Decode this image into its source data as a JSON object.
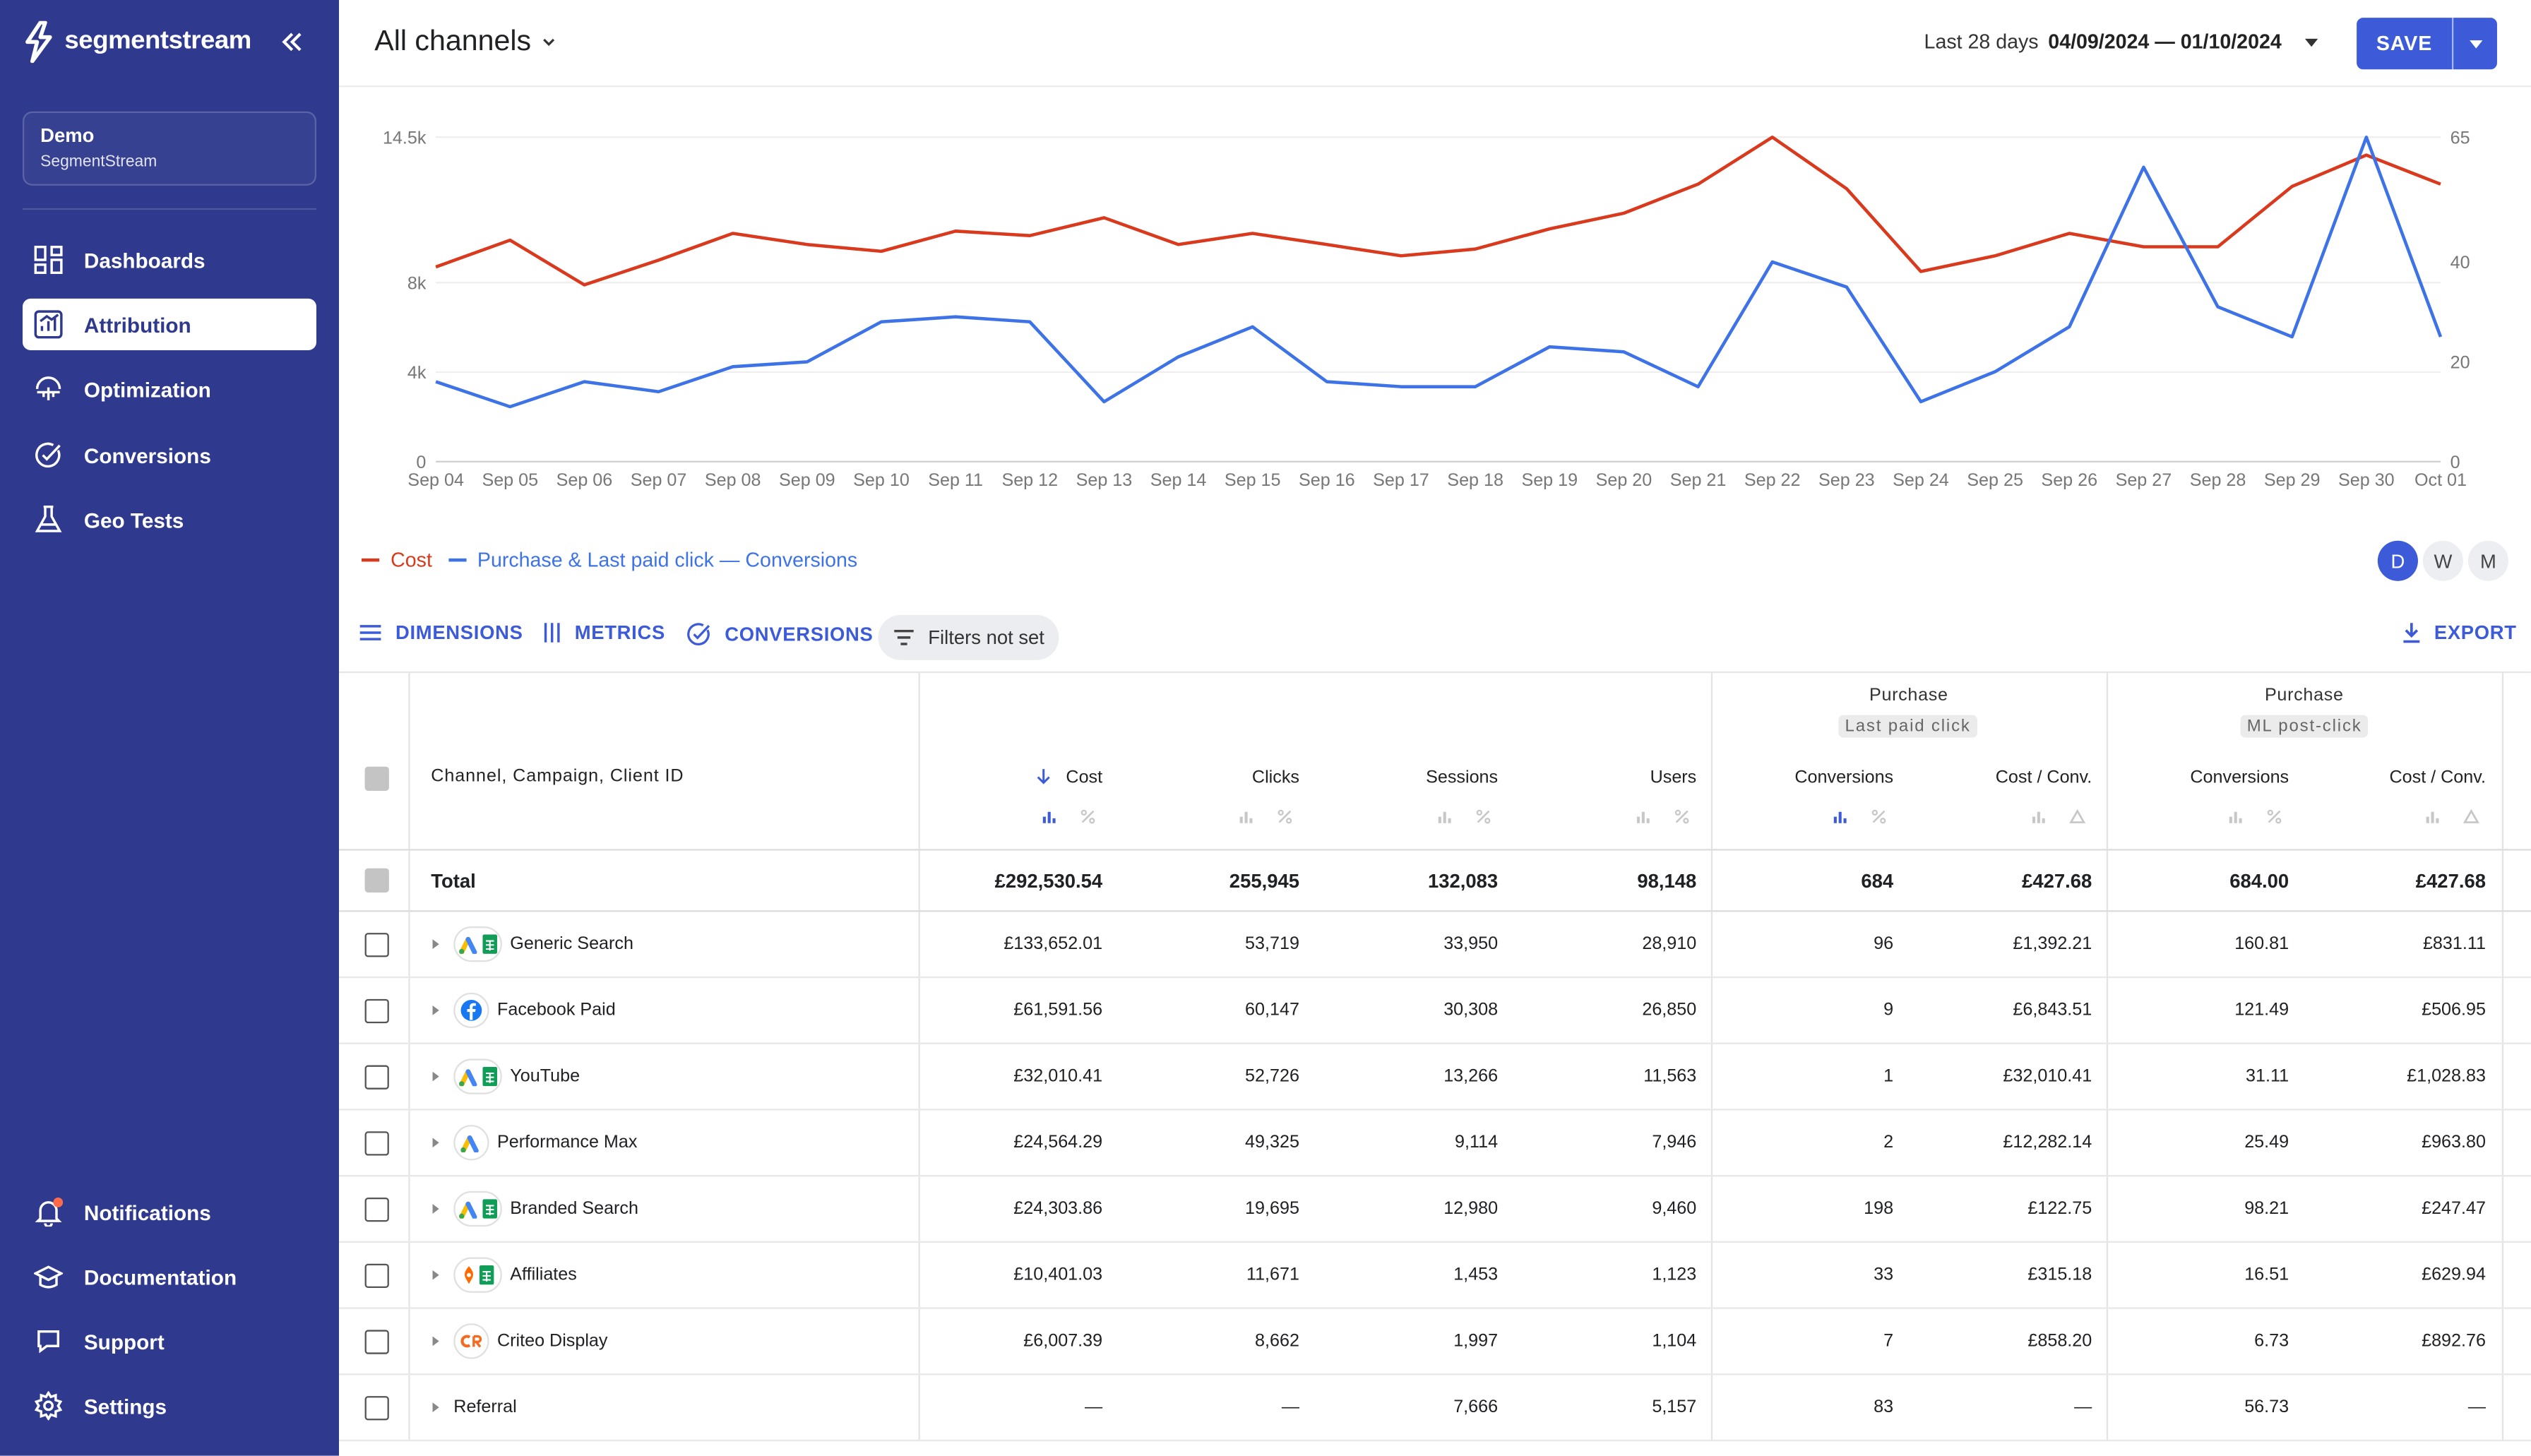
{
  "app": {
    "brand": "segmentstream"
  },
  "sidebar": {
    "account": {
      "name": "Demo",
      "org": "SegmentStream"
    },
    "items": [
      {
        "label": "Dashboards",
        "icon": "dashboards-icon"
      },
      {
        "label": "Attribution",
        "icon": "attribution-icon",
        "active": true
      },
      {
        "label": "Optimization",
        "icon": "optimization-icon"
      },
      {
        "label": "Conversions",
        "icon": "conversions-icon"
      },
      {
        "label": "Geo Tests",
        "icon": "flask-icon"
      }
    ],
    "bottom": [
      {
        "label": "Notifications",
        "icon": "bell-icon"
      },
      {
        "label": "Documentation",
        "icon": "graduation-cap-icon"
      },
      {
        "label": "Support",
        "icon": "chat-icon"
      },
      {
        "label": "Settings",
        "icon": "gear-icon"
      }
    ]
  },
  "header": {
    "title": "All channels",
    "date_label": "Last 28 days",
    "date_value": "04/09/2024 — 01/10/2024",
    "save": "SAVE"
  },
  "chart_data": {
    "type": "line",
    "x": [
      "Sep 04",
      "Sep 05",
      "Sep 06",
      "Sep 07",
      "Sep 08",
      "Sep 09",
      "Sep 10",
      "Sep 11",
      "Sep 12",
      "Sep 13",
      "Sep 14",
      "Sep 15",
      "Sep 16",
      "Sep 17",
      "Sep 18",
      "Sep 19",
      "Sep 20",
      "Sep 21",
      "Sep 22",
      "Sep 23",
      "Sep 24",
      "Sep 25",
      "Sep 26",
      "Sep 27",
      "Sep 28",
      "Sep 29",
      "Sep 30",
      "Oct 01"
    ],
    "y_left_ticks": [
      "0",
      "4k",
      "8k",
      "14.5k"
    ],
    "y_left_tick_values": [
      0,
      4000,
      8000,
      14500
    ],
    "y_right_ticks": [
      "0",
      "20",
      "40",
      "65"
    ],
    "y_right_tick_values": [
      0,
      20,
      40,
      65
    ],
    "series": [
      {
        "name": "Cost",
        "axis": "left",
        "color": "#d93a1e",
        "values": [
          8700,
          9900,
          7900,
          9000,
          10200,
          9700,
          9400,
          10300,
          10100,
          10900,
          9700,
          10200,
          9700,
          9200,
          9500,
          10400,
          11100,
          12400,
          14500,
          12200,
          8500,
          9200,
          10200,
          9600,
          9600,
          12300,
          13700,
          12400
        ]
      },
      {
        "name": "Purchase & Last paid click — Conversions",
        "axis": "right",
        "color": "#3d73e6",
        "values": [
          16,
          11,
          16,
          14,
          19,
          20,
          28,
          29,
          28,
          12,
          21,
          27,
          16,
          15,
          15,
          23,
          22,
          15,
          40,
          35,
          12,
          18,
          27,
          59,
          31,
          25,
          65,
          25
        ]
      }
    ],
    "granularity": [
      "D",
      "W",
      "M"
    ],
    "granularity_selected": "D"
  },
  "toolbar": {
    "dimensions": "DIMENSIONS",
    "metrics": "METRICS",
    "conversions": "CONVERSIONS",
    "filters": "Filters not set",
    "export": "EXPORT"
  },
  "table": {
    "name_header": "Channel, Campaign, Client ID",
    "columns": [
      "Cost",
      "Clicks",
      "Sessions",
      "Users",
      "Conversions",
      "Cost / Conv.",
      "Conversions",
      "Cost / Conv."
    ],
    "groups": [
      {
        "title": "Purchase",
        "chip": "Last paid click"
      },
      {
        "title": "Purchase",
        "chip": "ML post-click"
      }
    ],
    "total": {
      "name": "Total",
      "values": [
        "£292,530.54",
        "255,945",
        "132,083",
        "98,148",
        "684",
        "£427.68",
        "684.00",
        "£427.68"
      ]
    },
    "rows": [
      {
        "name": "Generic Search",
        "icon": "google-ads-sheets-icon",
        "values": [
          "£133,652.01",
          "53,719",
          "33,950",
          "28,910",
          "96",
          "£1,392.21",
          "160.81",
          "£831.11"
        ]
      },
      {
        "name": "Facebook Paid",
        "icon": "facebook-icon",
        "values": [
          "£61,591.56",
          "60,147",
          "30,308",
          "26,850",
          "9",
          "£6,843.51",
          "121.49",
          "£506.95"
        ]
      },
      {
        "name": "YouTube",
        "icon": "google-ads-sheets-icon",
        "values": [
          "£32,010.41",
          "52,726",
          "13,266",
          "11,563",
          "1",
          "£32,010.41",
          "31.11",
          "£1,028.83"
        ]
      },
      {
        "name": "Performance Max",
        "icon": "google-ads-icon",
        "values": [
          "£24,564.29",
          "49,325",
          "9,114",
          "7,946",
          "2",
          "£12,282.14",
          "25.49",
          "£963.80"
        ]
      },
      {
        "name": "Branded Search",
        "icon": "google-ads-sheets-icon",
        "values": [
          "£24,303.86",
          "19,695",
          "12,980",
          "9,460",
          "198",
          "£122.75",
          "98.21",
          "£247.47"
        ]
      },
      {
        "name": "Affiliates",
        "icon": "awin-sheets-icon",
        "values": [
          "£10,401.03",
          "11,671",
          "1,453",
          "1,123",
          "33",
          "£315.18",
          "16.51",
          "£629.94"
        ]
      },
      {
        "name": "Criteo Display",
        "icon": "criteo-icon",
        "values": [
          "£6,007.39",
          "8,662",
          "1,997",
          "1,104",
          "7",
          "£858.20",
          "6.73",
          "£892.76"
        ]
      },
      {
        "name": "Referral",
        "icon": "",
        "values": [
          "—",
          "—",
          "7,666",
          "5,157",
          "83",
          "—",
          "56.73",
          "—"
        ]
      }
    ]
  }
}
